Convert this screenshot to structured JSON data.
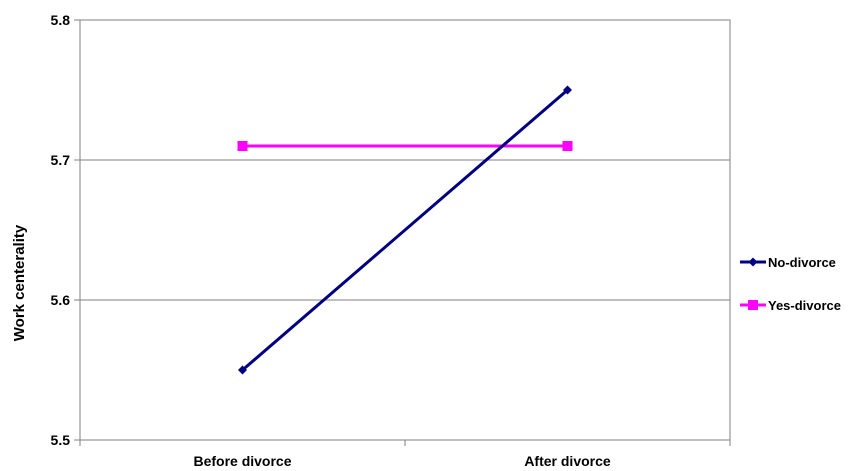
{
  "chart_data": {
    "type": "line",
    "title": "",
    "xlabel": "",
    "ylabel": "Work centerality",
    "categories": [
      "Before divorce",
      "After divorce"
    ],
    "ylim": [
      5.5,
      5.8
    ],
    "yticks": [
      "5.5",
      "5.6",
      "5.7",
      "5.8"
    ],
    "grid": "horizontal",
    "legend_position": "right",
    "series": [
      {
        "name": "No-divorce",
        "values": [
          5.55,
          5.75
        ],
        "color": "#000080",
        "marker": "diamond"
      },
      {
        "name": "Yes-divorce",
        "values": [
          5.71,
          5.71
        ],
        "color": "#ff00ff",
        "marker": "square"
      }
    ]
  }
}
